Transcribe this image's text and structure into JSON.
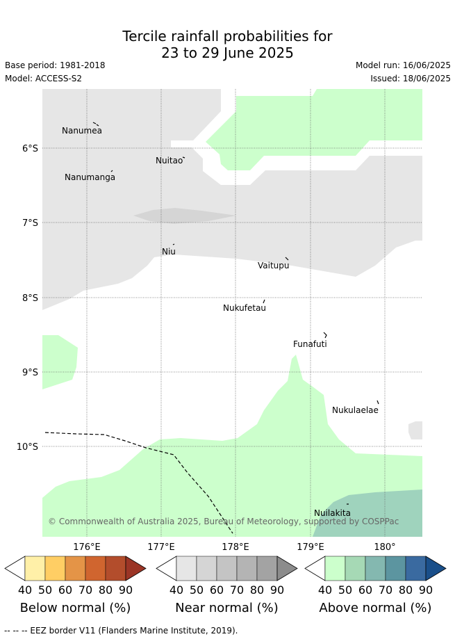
{
  "title": {
    "line1": "Tercile rainfall probabilities for",
    "line2": "23 to 29 June 2025"
  },
  "meta": {
    "base_period": "Base period: 1981-2018",
    "model": "Model: ACCESS-S2",
    "model_run": "Model run: 16/06/2025",
    "issued": "Issued: 18/06/2025"
  },
  "map": {
    "lat_labels": [
      "6°S",
      "7°S",
      "8°S",
      "9°S",
      "10°S"
    ],
    "lon_labels": [
      "176°E",
      "177°E",
      "178°E",
      "179°E",
      "180°"
    ],
    "places": [
      "Nanumea",
      "Nuitao",
      "Nanumanga",
      "Niu",
      "Vaitupu",
      "Nukufetau",
      "Funafuti",
      "Nukulaelae",
      "Nuilakita"
    ],
    "copyright": "© Commonwealth of Australia 2025, Bureau of Meteorology, supported by COSPPac"
  },
  "colorbars": [
    {
      "title": "Below normal (%)",
      "ticks": [
        "40",
        "50",
        "60",
        "70",
        "80",
        "90"
      ],
      "colors": [
        "#ffffff",
        "#fff0a8",
        "#ffce64",
        "#e49447",
        "#d0652f",
        "#b34d2c",
        "#9b3526"
      ]
    },
    {
      "title": "Near normal (%)",
      "ticks": [
        "40",
        "50",
        "60",
        "70",
        "80",
        "90"
      ],
      "colors": [
        "#ffffff",
        "#e6e6e6",
        "#d5d5d5",
        "#c4c4c4",
        "#b4b4b4",
        "#a3a3a3",
        "#8c8c8c"
      ]
    },
    {
      "title": "Above normal (%)",
      "ticks": [
        "40",
        "50",
        "60",
        "70",
        "80",
        "90"
      ],
      "colors": [
        "#ffffff",
        "#ccffcc",
        "#a6d9b5",
        "#84b8b0",
        "#5c95a0",
        "#3a6aa0",
        "#1a4f8a"
      ]
    }
  ],
  "footer": "-- -- -- EEZ border V11 (Flanders Marine Institute, 2019)."
}
